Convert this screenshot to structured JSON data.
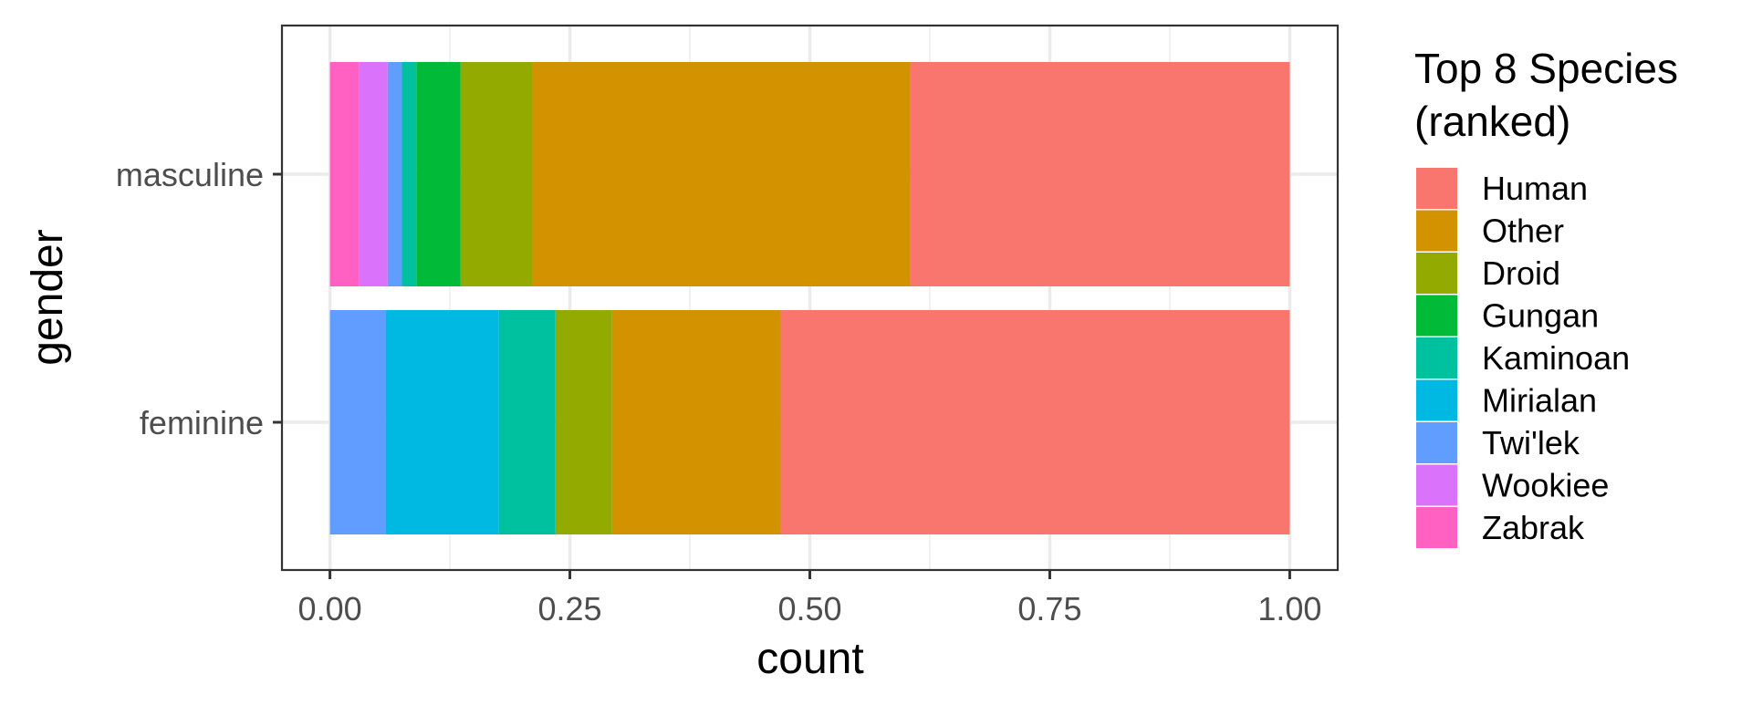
{
  "chart_data": {
    "type": "bar",
    "orientation": "horizontal",
    "stacked": true,
    "categories": [
      "masculine",
      "feminine"
    ],
    "series": [
      {
        "name": "Human",
        "color": "#F8766D",
        "values": [
          0.395,
          0.53
        ]
      },
      {
        "name": "Other",
        "color": "#D39200",
        "values": [
          0.394,
          0.176
        ]
      },
      {
        "name": "Droid",
        "color": "#93AA00",
        "values": [
          0.075,
          0.059
        ]
      },
      {
        "name": "Gungan",
        "color": "#00BA38",
        "values": [
          0.046,
          0
        ]
      },
      {
        "name": "Kaminoan",
        "color": "#00C19F",
        "values": [
          0.015,
          0.059
        ]
      },
      {
        "name": "Mirialan",
        "color": "#00B9E3",
        "values": [
          0,
          0.118
        ]
      },
      {
        "name": "Twi'lek",
        "color": "#619CFF",
        "values": [
          0.015,
          0.058
        ]
      },
      {
        "name": "Wookiee",
        "color": "#DB72FB",
        "values": [
          0.03,
          0
        ]
      },
      {
        "name": "Zabrak",
        "color": "#FF61C3",
        "values": [
          0.03,
          0
        ]
      }
    ],
    "xlabel": "count",
    "ylabel": "gender",
    "xlim": [
      -0.05,
      1.05
    ],
    "xticks": [
      0,
      0.25,
      0.5,
      0.75,
      1
    ],
    "xtick_labels": [
      "0.00",
      "0.25",
      "0.50",
      "0.75",
      "1.00"
    ],
    "grid": true,
    "legend": {
      "title_lines": [
        "Top 8 Species",
        "(ranked)"
      ],
      "placement": "right"
    }
  }
}
